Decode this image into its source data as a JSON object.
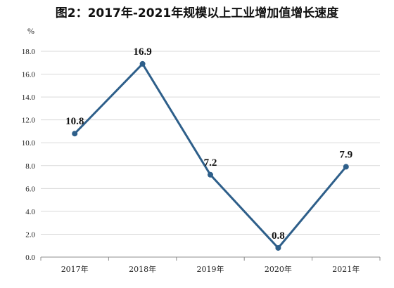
{
  "chart_data": {
    "type": "line",
    "title": "图2：2017年-2021年规模以上工业增加值增长速度",
    "unit": "%",
    "categories": [
      "2017年",
      "2018年",
      "2019年",
      "2020年",
      "2021年"
    ],
    "series": [
      {
        "values": [
          10.8,
          16.9,
          7.2,
          0.8,
          7.9
        ],
        "data_labels": [
          "10.8",
          "16.9",
          "7.2",
          "0.8",
          "7.9"
        ]
      }
    ],
    "yticks": [
      "0.0",
      "2.0",
      "4.0",
      "6.0",
      "8.0",
      "10.0",
      "12.0",
      "14.0",
      "16.0",
      "18.0"
    ],
    "ylim": [
      0,
      18
    ],
    "grid": true,
    "colors": {
      "line": "#2e5f8a",
      "marker": "#2e5f8a"
    }
  }
}
